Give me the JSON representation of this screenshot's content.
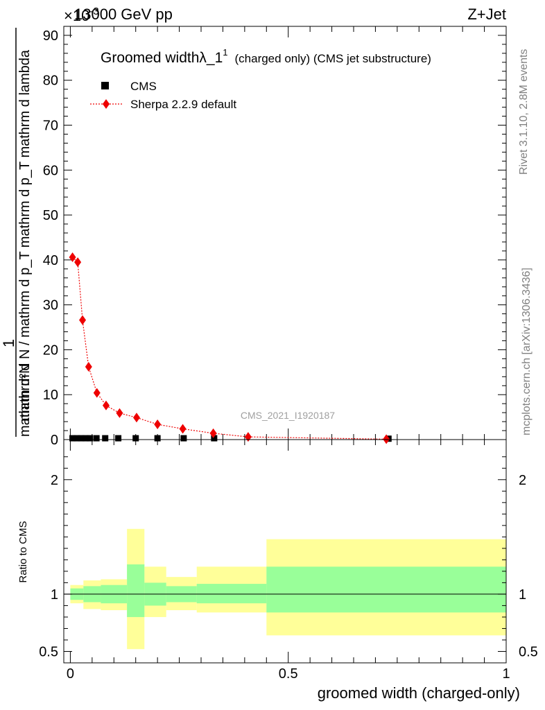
{
  "header": {
    "energy_label": "13000 GeV pp",
    "process_label": "Z+Jet",
    "exponent_label": "×10",
    "exponent_sup": "-3"
  },
  "side_labels": {
    "rivet": "Rivet 3.1.10,  2.8M events",
    "mcplots": "mcplots.cern.ch [arXiv:1306.3436]"
  },
  "analysis_label": "CMS_2021_I1920187",
  "top_panel": {
    "title_main": "Groomed widthλ_1",
    "title_sup": "1",
    "title_rest": "(charged only) (CMS jet substructure)",
    "ylabel_lines": [
      "1",
      "mathrm d N / mathrm d p_T mathrm d p_T mathrm d lambda",
      "mathrm d²N"
    ],
    "legend": [
      {
        "name": "CMS",
        "color": "#000000",
        "marker": "square"
      },
      {
        "name": "Sherpa 2.2.9 default",
        "color": "#ee0000",
        "marker": "diamond"
      }
    ]
  },
  "bottom_panel": {
    "ylabel": "Ratio to CMS",
    "xlabel": "groomed width (charged-only)"
  },
  "chart_data": [
    {
      "type": "line",
      "panel": "main",
      "xlim": [
        -0.015,
        1.0
      ],
      "ylim": [
        0,
        92
      ],
      "y_scale_factor": "1e-3",
      "x_ticks": [
        0,
        0.5,
        1
      ],
      "x_tick_labels": [
        "0",
        "0.5",
        "1"
      ],
      "y_ticks": [
        0,
        10,
        20,
        30,
        40,
        50,
        60,
        70,
        80,
        90
      ],
      "y_tick_labels": [
        "0",
        "10",
        "20",
        "30",
        "40",
        "50",
        "60",
        "70",
        "80",
        "90"
      ],
      "series": [
        {
          "name": "CMS",
          "x": [
            0.005,
            0.015,
            0.025,
            0.035,
            0.045,
            0.06,
            0.08,
            0.11,
            0.15,
            0.2,
            0.26,
            0.33,
            0.73
          ],
          "y": [
            0.3,
            0.3,
            0.3,
            0.3,
            0.3,
            0.3,
            0.3,
            0.3,
            0.3,
            0.3,
            0.3,
            0.3,
            0.2
          ]
        },
        {
          "name": "Sherpa 2.2.9 default",
          "x": [
            0.005,
            0.017,
            0.028,
            0.042,
            0.061,
            0.082,
            0.113,
            0.152,
            0.2,
            0.258,
            0.328,
            0.408,
            0.725
          ],
          "y": [
            40.6,
            39.5,
            26.6,
            16.2,
            10.4,
            7.6,
            5.9,
            4.9,
            3.4,
            2.4,
            1.4,
            0.6,
            0.1
          ]
        }
      ]
    },
    {
      "type": "area",
      "panel": "ratio",
      "xlim": [
        -0.015,
        1.0
      ],
      "ylim": [
        0.4,
        2.35
      ],
      "x_ticks": [
        0,
        0.5,
        1
      ],
      "x_tick_labels": [
        "0",
        "0.5",
        "1"
      ],
      "y_ticks": [
        0.5,
        1,
        2
      ],
      "y_tick_labels": [
        "0.5",
        "1",
        "2"
      ],
      "reference_line": 1,
      "bins": [
        {
          "x0": 0.0,
          "x1": 0.03,
          "inner": [
            0.95,
            1.05
          ],
          "outer": [
            0.92,
            1.08
          ]
        },
        {
          "x0": 0.03,
          "x1": 0.07,
          "inner": [
            0.93,
            1.07
          ],
          "outer": [
            0.87,
            1.12
          ]
        },
        {
          "x0": 0.07,
          "x1": 0.13,
          "inner": [
            0.92,
            1.08
          ],
          "outer": [
            0.86,
            1.13
          ]
        },
        {
          "x0": 0.13,
          "x1": 0.17,
          "inner": [
            0.8,
            1.26
          ],
          "outer": [
            0.52,
            1.57
          ]
        },
        {
          "x0": 0.17,
          "x1": 0.22,
          "inner": [
            0.9,
            1.1
          ],
          "outer": [
            0.8,
            1.24
          ]
        },
        {
          "x0": 0.22,
          "x1": 0.29,
          "inner": [
            0.93,
            1.07
          ],
          "outer": [
            0.86,
            1.15
          ]
        },
        {
          "x0": 0.29,
          "x1": 0.45,
          "inner": [
            0.92,
            1.09
          ],
          "outer": [
            0.84,
            1.24
          ]
        },
        {
          "x0": 0.45,
          "x1": 1.0,
          "inner": [
            0.84,
            1.24
          ],
          "outer": [
            0.64,
            1.48
          ]
        }
      ]
    }
  ]
}
